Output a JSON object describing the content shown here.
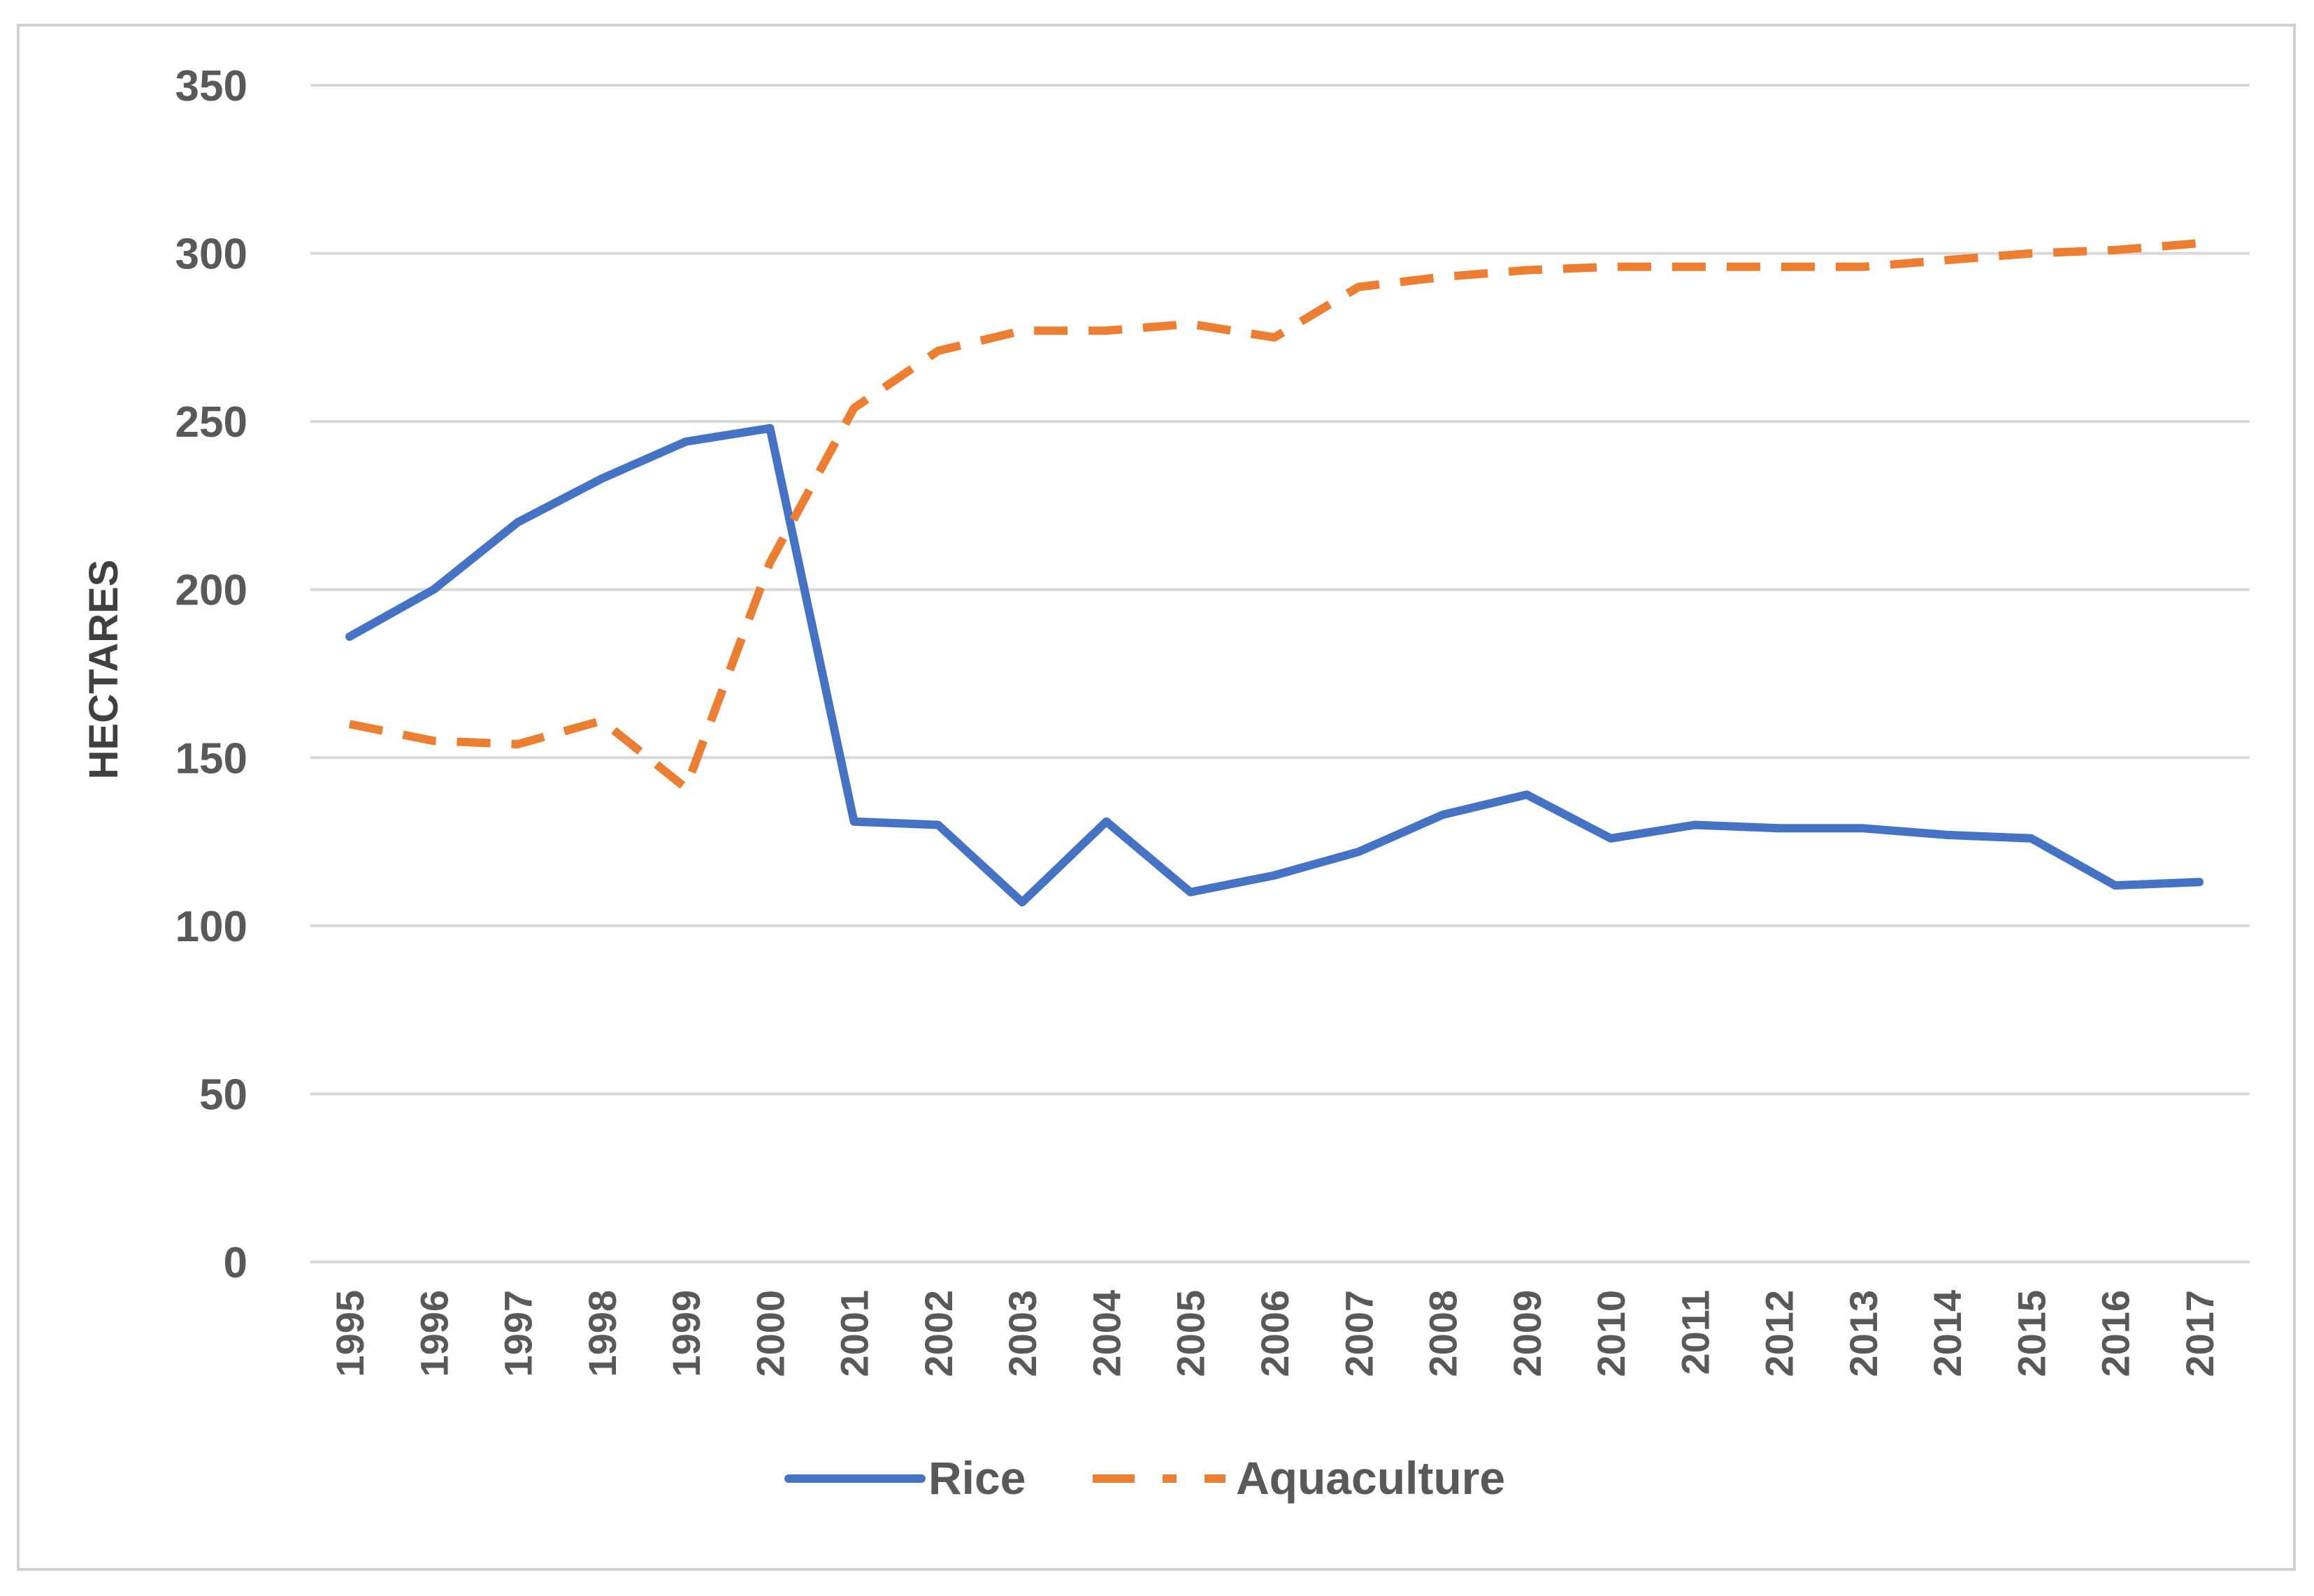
{
  "chart_data": {
    "type": "line",
    "title": "",
    "xlabel": "",
    "ylabel": "HECTARES",
    "ylim": [
      0,
      350
    ],
    "yticks": [
      "0",
      "50",
      "100",
      "150",
      "200",
      "250",
      "300",
      "350"
    ],
    "grid": true,
    "legend_position": "bottom",
    "categories": [
      "1995",
      "1996",
      "1997",
      "1998",
      "1999",
      "2000",
      "2001",
      "2002",
      "2003",
      "2004",
      "2005",
      "2006",
      "2007",
      "2008",
      "2009",
      "2010",
      "2011",
      "2012",
      "2013",
      "2014",
      "2015",
      "2016",
      "2017"
    ],
    "series": [
      {
        "name": "Rice",
        "color": "#4472C4",
        "dash": "solid",
        "values": [
          186,
          200,
          220,
          233,
          244,
          248,
          131,
          130,
          107,
          131,
          110,
          115,
          122,
          133,
          139,
          126,
          130,
          129,
          129,
          127,
          126,
          112,
          113
        ]
      },
      {
        "name": "Aquaculture",
        "color": "#ED7D31",
        "dash": "dashed",
        "values": [
          160,
          155,
          154,
          161,
          141,
          208,
          254,
          271,
          277,
          277,
          279,
          275,
          290,
          293,
          295,
          296,
          296,
          296,
          296,
          298,
          300,
          301,
          303
        ]
      }
    ]
  }
}
